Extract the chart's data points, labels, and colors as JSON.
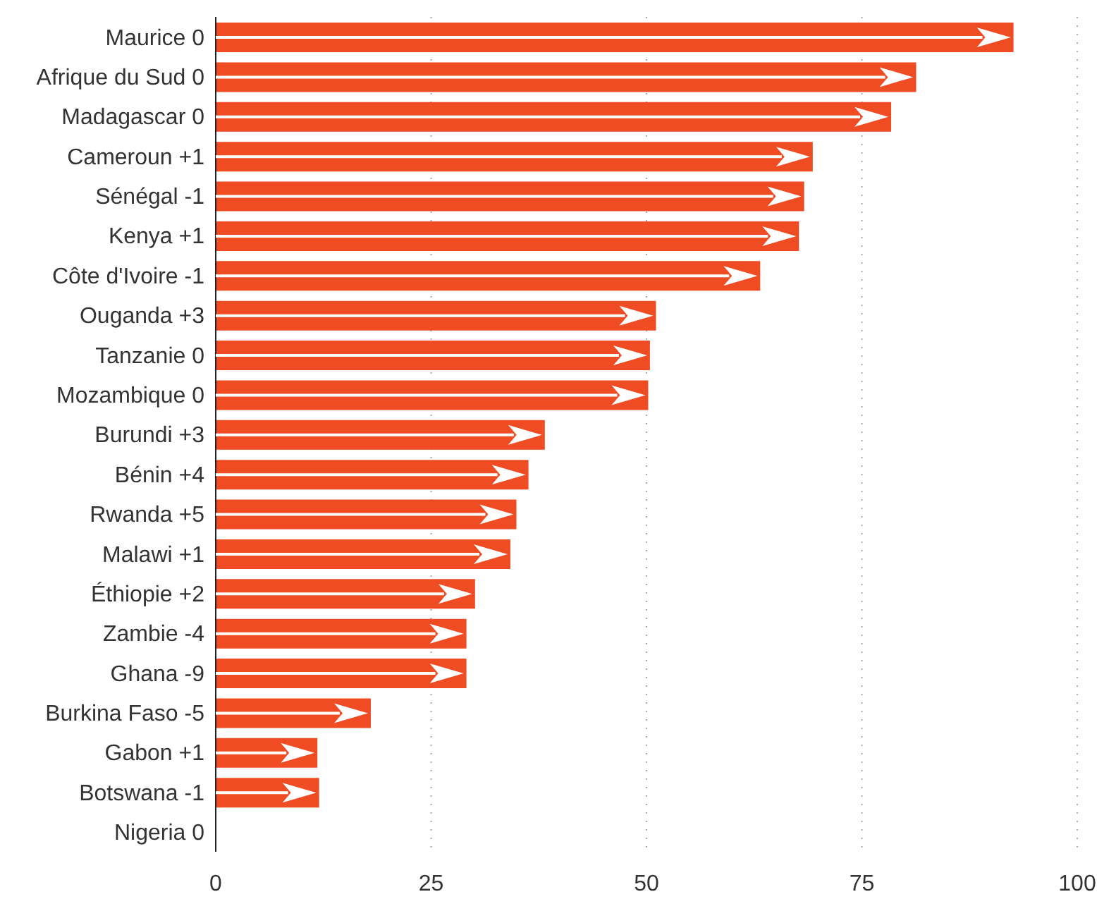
{
  "chart_data": {
    "type": "bar",
    "orientation": "horizontal",
    "categories": [
      "Maurice 0",
      "Afrique du Sud 0",
      "Madagascar 0",
      "Cameroun +1",
      "Sénégal -1",
      "Kenya +1",
      "Côte d'Ivoire -1",
      "Ouganda +3",
      "Tanzanie 0",
      "Mozambique 0",
      "Burundi +3",
      "Bénin +4",
      "Rwanda +5",
      "Malawi +1",
      "Éthiopie +2",
      "Zambie -4",
      "Ghana -9",
      "Burkina Faso -5",
      "Gabon +1",
      "Botswana -1",
      "Nigeria 0"
    ],
    "values": [
      92.6,
      81.3,
      78.4,
      69.3,
      68.3,
      67.7,
      63.2,
      51.1,
      50.4,
      50.2,
      38.2,
      36.3,
      34.9,
      34.2,
      30.1,
      29.1,
      29.1,
      18.0,
      11.8,
      12.0,
      0
    ],
    "color": "#ef4c23",
    "xlim": [
      0,
      100
    ],
    "xticks": [
      0,
      25,
      50,
      75,
      100
    ],
    "grid": "x"
  }
}
